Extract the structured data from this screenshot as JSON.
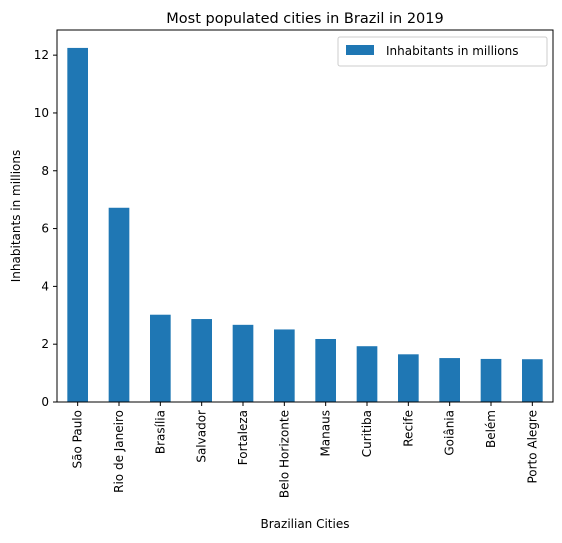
{
  "chart_data": {
    "type": "bar",
    "title": "Most populated cities in Brazil in 2019",
    "xlabel": "Brazilian Cities",
    "ylabel": "Inhabitants in millions",
    "ylim": [
      0,
      12.87
    ],
    "yticks": [
      0,
      2,
      4,
      6,
      8,
      10,
      12
    ],
    "grid": false,
    "legend_position": "top-right",
    "categories": [
      "São Paulo",
      "Rio de Janeiro",
      "Brasília",
      "Salvador",
      "Fortaleza",
      "Belo Horizonte",
      "Manaus",
      "Curitiba",
      "Recife",
      "Goiânia",
      "Belém",
      "Porto Alegre"
    ],
    "series": [
      {
        "name": "Inhabitants in millions",
        "color": "#1f77b4",
        "values": [
          12.25,
          6.72,
          3.02,
          2.87,
          2.67,
          2.51,
          2.18,
          1.93,
          1.65,
          1.52,
          1.49,
          1.48
        ]
      }
    ]
  }
}
